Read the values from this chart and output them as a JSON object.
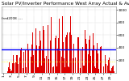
{
  "title": "Solar PV/Inverter Performance West Array Actual & Average Power Output",
  "subtitle": "fred2008 ----",
  "bg_color": "#ffffff",
  "plot_bg": "#ffffff",
  "bar_color": "#dd0000",
  "avg_line_color": "#0000ff",
  "dotted_line_color": "#ffff00",
  "grid_color": "#aaaaaa",
  "ylim": [
    0,
    1050
  ],
  "ytick_vals": [
    200,
    400,
    600,
    800,
    1000
  ],
  "avg_value": 370,
  "dotted_value": 170,
  "peak_value": 1000,
  "title_fontsize": 4.2,
  "tick_fontsize": 3.2,
  "num_points": 360
}
